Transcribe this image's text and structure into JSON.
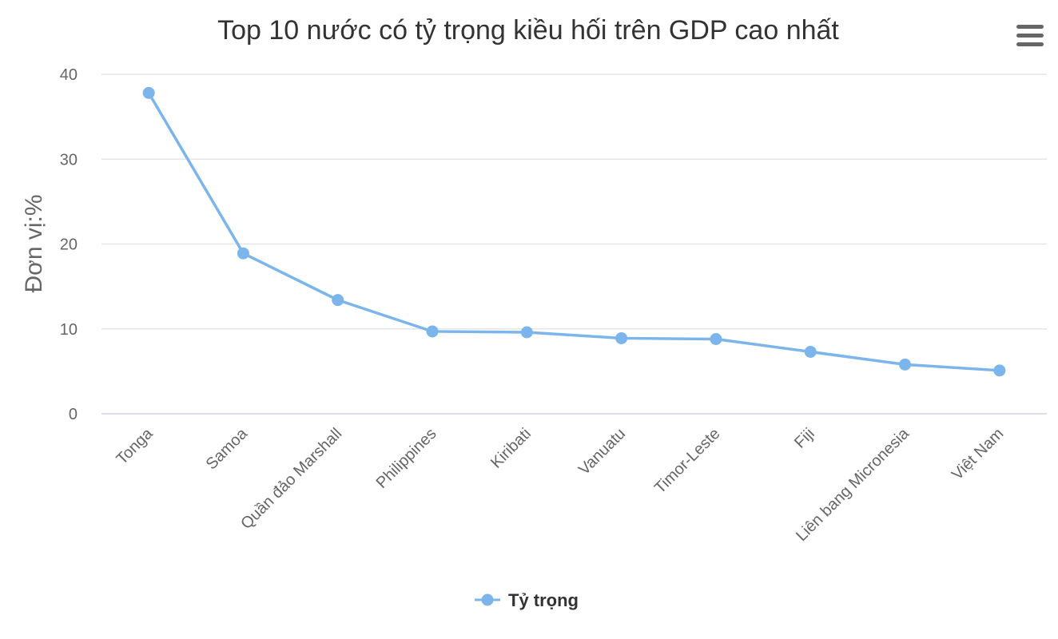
{
  "menu_icon": "hamburger-menu-icon",
  "colors": {
    "series": "#7cb5ec",
    "grid": "#e6e6e6",
    "axis_line": "#ccd6eb",
    "text": "#333333",
    "tick_text": "#666666",
    "menu_icon": "#666666"
  },
  "chart_data": {
    "type": "line",
    "title": "Top 10 nước có tỷ trọng kiều hối trên GDP cao nhất",
    "xlabel": "",
    "ylabel": "Đơn vị:%",
    "categories": [
      "Tonga",
      "Samoa",
      "Quần đảo Marshall",
      "Philippines",
      "Kiribati",
      "Vanuatu",
      "Timor-Leste",
      "Fiji",
      "Liên bang Micronesia",
      "Việt Nam"
    ],
    "series": [
      {
        "name": "Tỷ trọng",
        "values": [
          37.8,
          18.9,
          13.4,
          9.7,
          9.6,
          8.9,
          8.8,
          7.3,
          5.8,
          5.1
        ]
      }
    ],
    "ylim": [
      0,
      40
    ],
    "yticks": [
      "0",
      "10",
      "20",
      "30",
      "40"
    ],
    "grid": true,
    "legend": "bottom-center"
  }
}
